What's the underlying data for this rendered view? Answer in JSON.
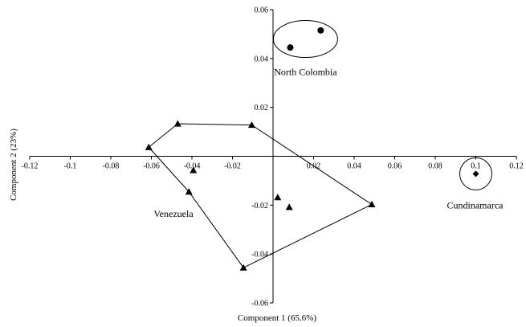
{
  "chart_data": {
    "type": "scatter",
    "x_label": "Component 1 (65.6%)",
    "y_label": "Component 2 (23%)",
    "xlim": [
      -0.12,
      0.12
    ],
    "ylim": [
      -0.06,
      0.06
    ],
    "x_ticks": [
      {
        "value": -0.12,
        "label": "-0.12"
      },
      {
        "value": -0.1,
        "label": "-0.1"
      },
      {
        "value": -0.08,
        "label": "-0.08"
      },
      {
        "value": -0.06,
        "label": "-0.06"
      },
      {
        "value": -0.04,
        "label": "-0.04"
      },
      {
        "value": -0.02,
        "label": "-0.02"
      },
      {
        "value": 0.02,
        "label": "0.02"
      },
      {
        "value": 0.04,
        "label": "0.04"
      },
      {
        "value": 0.06,
        "label": "0.06"
      },
      {
        "value": 0.08,
        "label": "0.08"
      },
      {
        "value": 0.1,
        "label": "0.1"
      },
      {
        "value": 0.12,
        "label": "0.12"
      }
    ],
    "y_ticks": [
      {
        "value": 0.06,
        "label": "0.06"
      },
      {
        "value": 0.04,
        "label": "0.04"
      },
      {
        "value": 0.02,
        "label": "0.02"
      },
      {
        "value": -0.02,
        "label": "-0.02"
      },
      {
        "value": -0.04,
        "label": "-0.04"
      },
      {
        "value": -0.06,
        "label": "-0.06"
      }
    ],
    "groups": [
      {
        "name": "North Colombia",
        "marker": "circle",
        "enclosure": "ellipse",
        "points": [
          {
            "x": 0.0085,
            "y": 0.0445
          },
          {
            "x": 0.0235,
            "y": 0.0515
          }
        ]
      },
      {
        "name": "Venezuela",
        "marker": "triangle",
        "enclosure": "polygon",
        "points": [
          {
            "x": -0.047,
            "y": 0.0133
          },
          {
            "x": -0.0105,
            "y": 0.0128
          },
          {
            "x": 0.0487,
            "y": -0.0197
          },
          {
            "x": -0.0146,
            "y": -0.0456
          },
          {
            "x": -0.0415,
            "y": -0.0145
          },
          {
            "x": -0.0613,
            "y": 0.0037
          },
          {
            "x": -0.0393,
            "y": -0.0057
          },
          {
            "x": 0.0023,
            "y": -0.0168
          },
          {
            "x": 0.008,
            "y": -0.0208
          }
        ],
        "hull_order": [
          0,
          1,
          2,
          3,
          4,
          5
        ]
      },
      {
        "name": "Cundinamarca",
        "marker": "diamond",
        "enclosure": "circle",
        "points": [
          {
            "x": 0.1,
            "y": -0.0072
          }
        ]
      }
    ]
  }
}
